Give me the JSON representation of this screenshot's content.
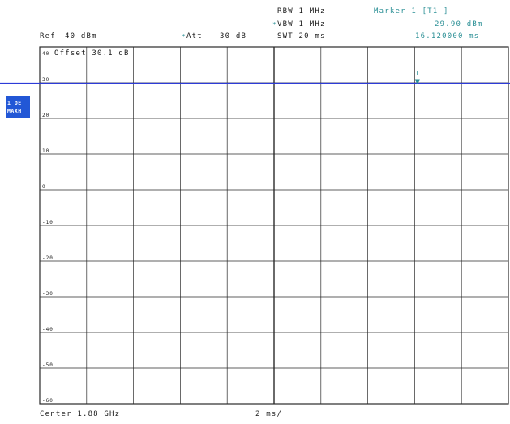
{
  "header": {
    "ref_label": "Ref",
    "ref_value": "40 dBm",
    "att_label": "Att",
    "att_value": "30 dB",
    "rbw": "RBW 1 MHz",
    "vbw": "VBW 1 MHz",
    "swt": "SWT 20 ms",
    "marker_label": "Marker 1 [T1 ]",
    "marker_level": "29.90 dBm",
    "marker_time": "16.120000 ms",
    "modified_star": "*"
  },
  "plot": {
    "offset_text": "Offset 30.1 dB",
    "y_ticks": [
      "40",
      "30",
      "20",
      "10",
      "0",
      "-10",
      "-20",
      "-30",
      "-40",
      "-50",
      "-60"
    ],
    "trace_level_dbm": 29.9,
    "marker_number": "1",
    "marker_time_ms": 16.12
  },
  "side_badge": {
    "line1": "1 DE",
    "line2": "MAXH"
  },
  "footer": {
    "center": "Center 1.88 GHz",
    "span": "2 ms/"
  },
  "colors": {
    "trace": "#2d3bd8",
    "grid": "#2a2a2a",
    "accent": "#2a8f95",
    "badge": "#2257d6"
  }
}
